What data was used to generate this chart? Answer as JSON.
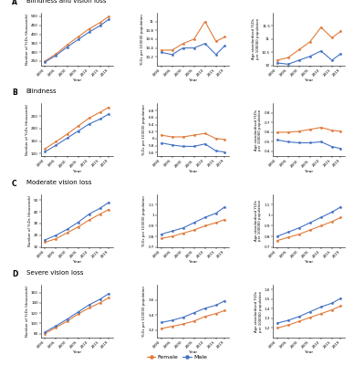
{
  "years": [
    1990,
    1995,
    2000,
    2005,
    2010,
    2015,
    2019
  ],
  "section_titles": [
    "Blindness and vision loss",
    "Blindness",
    "Moderate vision loss",
    "Severe vision loss"
  ],
  "female_color": "#E07B3A",
  "male_color": "#4472C4",
  "markersize": 1.8,
  "linewidth": 0.8,
  "A_col0_female": [
    250,
    290,
    340,
    385,
    430,
    465,
    500
  ],
  "A_col0_male": [
    245,
    282,
    328,
    370,
    412,
    448,
    483
  ],
  "A_col0_ylim": [
    225,
    520
  ],
  "A_col0_yticks": [
    250,
    300,
    350,
    400,
    450,
    500
  ],
  "A_col1_female": [
    10.35,
    10.35,
    10.5,
    10.6,
    11.0,
    10.55,
    10.65
  ],
  "A_col1_male": [
    10.3,
    10.25,
    10.4,
    10.4,
    10.5,
    10.25,
    10.45
  ],
  "A_col1_ylim": [
    10.0,
    11.2
  ],
  "A_col1_yticks": [
    10.2,
    10.4,
    10.6,
    10.8,
    11.0
  ],
  "A_col2_female": [
    10.2,
    10.3,
    10.6,
    10.9,
    11.45,
    11.05,
    11.3
  ],
  "A_col2_male": [
    10.1,
    10.05,
    10.2,
    10.35,
    10.55,
    10.2,
    10.45
  ],
  "A_col2_ylim": [
    10.0,
    12.0
  ],
  "A_col2_yticks": [
    10.0,
    10.5,
    11.0,
    11.5
  ],
  "B_col0_female": [
    120,
    148,
    178,
    210,
    242,
    265,
    285
  ],
  "B_col0_male": [
    108,
    134,
    162,
    190,
    218,
    238,
    258
  ],
  "B_col0_ylim": [
    90,
    300
  ],
  "B_col0_yticks": [
    100,
    150,
    200,
    250
  ],
  "B_col1_female": [
    6.1,
    6.05,
    6.05,
    6.1,
    6.15,
    6.0,
    5.98
  ],
  "B_col1_male": [
    5.88,
    5.82,
    5.78,
    5.78,
    5.85,
    5.65,
    5.62
  ],
  "B_col1_ylim": [
    5.5,
    7.0
  ],
  "B_col1_yticks": [
    5.6,
    5.8,
    6.0,
    6.2,
    6.4,
    6.6,
    6.8
  ],
  "B_col2_female": [
    0.6,
    0.6,
    0.61,
    0.63,
    0.65,
    0.62,
    0.61
  ],
  "B_col2_male": [
    0.52,
    0.5,
    0.49,
    0.49,
    0.5,
    0.45,
    0.43
  ],
  "B_col2_ylim": [
    0.35,
    0.9
  ],
  "B_col2_yticks": [
    0.4,
    0.5,
    0.6,
    0.7,
    0.8
  ],
  "C_col0_female": [
    14,
    17,
    22,
    27,
    33,
    38,
    42
  ],
  "C_col0_male": [
    16,
    20,
    25,
    31,
    38,
    43,
    48
  ],
  "C_col0_ylim": [
    10,
    55
  ],
  "C_col0_yticks": [
    10,
    20,
    30,
    40,
    50
  ],
  "C_col1_female": [
    0.78,
    0.8,
    0.83,
    0.86,
    0.9,
    0.93,
    0.96
  ],
  "C_col1_male": [
    0.82,
    0.85,
    0.88,
    0.93,
    0.98,
    1.02,
    1.08
  ],
  "C_col1_ylim": [
    0.7,
    1.2
  ],
  "C_col1_yticks": [
    0.7,
    0.8,
    0.9,
    1.0,
    1.1
  ],
  "C_col2_female": [
    0.76,
    0.79,
    0.82,
    0.86,
    0.9,
    0.94,
    0.98
  ],
  "C_col2_male": [
    0.8,
    0.84,
    0.88,
    0.93,
    0.98,
    1.03,
    1.08
  ],
  "C_col2_ylim": [
    0.7,
    1.2
  ],
  "C_col2_yticks": [
    0.7,
    0.8,
    0.9,
    1.0,
    1.1
  ],
  "D_col0_female": [
    80,
    92,
    104,
    118,
    130,
    140,
    150
  ],
  "D_col0_male": [
    83,
    95,
    108,
    122,
    136,
    147,
    158
  ],
  "D_col0_ylim": [
    72,
    175
  ],
  "D_col0_yticks": [
    80,
    100,
    120,
    140,
    160
  ],
  "D_col1_female": [
    3.22,
    3.25,
    3.28,
    3.32,
    3.38,
    3.42,
    3.46
  ],
  "D_col1_male": [
    3.3,
    3.33,
    3.37,
    3.43,
    3.49,
    3.53,
    3.59
  ],
  "D_col1_ylim": [
    3.1,
    3.8
  ],
  "D_col1_yticks": [
    3.2,
    3.4,
    3.6
  ],
  "D_col2_female": [
    1.2,
    1.23,
    1.27,
    1.31,
    1.35,
    1.39,
    1.43
  ],
  "D_col2_male": [
    1.25,
    1.28,
    1.32,
    1.37,
    1.42,
    1.46,
    1.51
  ],
  "D_col2_ylim": [
    1.1,
    1.65
  ],
  "D_col2_yticks": [
    1.2,
    1.3,
    1.4,
    1.5,
    1.6
  ]
}
